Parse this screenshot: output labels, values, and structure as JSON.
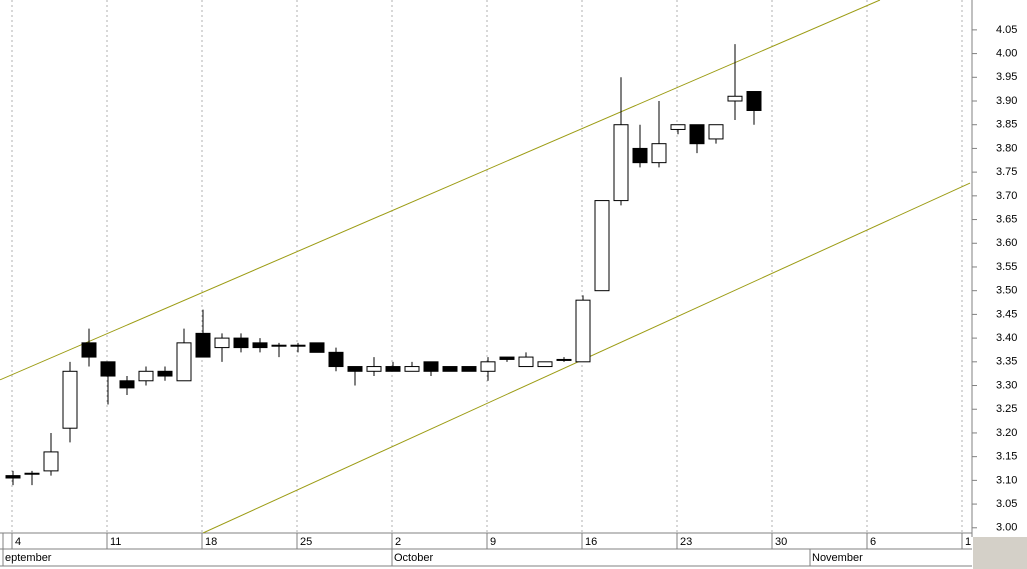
{
  "chart_data": {
    "type": "candlestick",
    "categories": [
      "4",
      null,
      null,
      null,
      null,
      "11",
      null,
      null,
      null,
      null,
      "18",
      null,
      null,
      null,
      null,
      "25",
      null,
      null,
      null,
      null,
      "2",
      null,
      null,
      null,
      null,
      "9",
      null,
      null,
      null,
      null,
      "16",
      null,
      null,
      null,
      null,
      "23",
      null,
      null,
      null,
      null,
      "30",
      null,
      null,
      null,
      null,
      "6",
      null,
      null,
      null,
      null,
      "1"
    ],
    "month_categories": [
      "eptember",
      null,
      null,
      null,
      null,
      null,
      null,
      null,
      null,
      null,
      null,
      null,
      null,
      null,
      null,
      null,
      null,
      null,
      null,
      null,
      "October",
      null,
      null,
      null,
      null,
      null,
      null,
      null,
      null,
      null,
      null,
      null,
      null,
      null,
      null,
      null,
      null,
      null,
      null,
      null,
      null,
      null,
      "November",
      null,
      null,
      null,
      null,
      null,
      null,
      null,
      null
    ],
    "open": [
      3.11,
      3.115,
      3.12,
      3.21,
      3.39,
      3.35,
      3.31,
      3.31,
      3.33,
      3.31,
      3.41,
      3.38,
      3.4,
      3.39,
      3.385,
      3.385,
      3.39,
      3.37,
      3.34,
      3.33,
      3.34,
      3.33,
      3.35,
      3.34,
      3.34,
      3.33,
      3.36,
      3.34,
      3.34,
      3.355,
      3.35,
      3.5,
      3.69,
      3.8,
      3.77,
      3.84,
      3.85,
      3.82,
      3.9,
      3.92,
      null,
      null,
      null,
      null,
      null,
      null,
      null,
      null,
      null,
      null,
      null
    ],
    "high": [
      3.12,
      3.12,
      3.2,
      3.35,
      3.42,
      3.35,
      3.32,
      3.34,
      3.34,
      3.42,
      3.46,
      3.41,
      3.41,
      3.4,
      3.39,
      3.39,
      3.39,
      3.38,
      3.34,
      3.36,
      3.35,
      3.35,
      3.35,
      3.34,
      3.34,
      3.36,
      3.36,
      3.37,
      3.35,
      3.36,
      3.49,
      3.69,
      3.95,
      3.85,
      3.9,
      3.85,
      3.85,
      3.85,
      4.02,
      3.92,
      null,
      null,
      null,
      null,
      null,
      null,
      null,
      null,
      null,
      null,
      null
    ],
    "low": [
      3.09,
      3.09,
      3.11,
      3.18,
      3.34,
      3.26,
      3.28,
      3.3,
      3.31,
      3.31,
      3.36,
      3.35,
      3.37,
      3.37,
      3.36,
      3.37,
      3.37,
      3.33,
      3.3,
      3.32,
      3.33,
      3.33,
      3.32,
      3.33,
      3.33,
      3.31,
      3.35,
      3.34,
      3.34,
      3.35,
      3.35,
      3.5,
      3.68,
      3.76,
      3.76,
      3.83,
      3.79,
      3.81,
      3.86,
      3.85,
      null,
      null,
      null,
      null,
      null,
      null,
      null,
      null,
      null,
      null,
      null
    ],
    "close": [
      3.105,
      3.115,
      3.16,
      3.33,
      3.36,
      3.32,
      3.295,
      3.33,
      3.32,
      3.39,
      3.36,
      3.4,
      3.38,
      3.38,
      3.385,
      3.385,
      3.37,
      3.34,
      3.33,
      3.34,
      3.33,
      3.34,
      3.33,
      3.33,
      3.33,
      3.35,
      3.355,
      3.36,
      3.35,
      3.355,
      3.48,
      3.69,
      3.85,
      3.77,
      3.81,
      3.85,
      3.81,
      3.85,
      3.91,
      3.88,
      null,
      null,
      null,
      null,
      null,
      null,
      null,
      null,
      null,
      null,
      null
    ],
    "up_color": "#ffffff",
    "down_color": "#000000",
    "trendlines": [
      {
        "color": "#9c9c14",
        "x": [
          -0.68,
          45.63
        ],
        "values": [
          3.312,
          4.113
        ]
      },
      {
        "color": "#9c9c14",
        "x": [
          10.0,
          50.37
        ],
        "values": [
          2.989,
          3.727
        ]
      }
    ],
    "ylim": [
      2.989,
      4.113
    ],
    "yticks": [
      {
        "value": 3.0,
        "label": "3.00"
      },
      {
        "value": 3.05,
        "label": "3.05"
      },
      {
        "value": 3.1,
        "label": "3.10"
      },
      {
        "value": 3.15,
        "label": "3.15"
      },
      {
        "value": 3.2,
        "label": "3.20"
      },
      {
        "value": 3.25,
        "label": "3.25"
      },
      {
        "value": 3.3,
        "label": "3.30"
      },
      {
        "value": 3.35,
        "label": "3.35"
      },
      {
        "value": 3.4,
        "label": "3.40"
      },
      {
        "value": 3.45,
        "label": "3.45"
      },
      {
        "value": 3.5,
        "label": "3.50"
      },
      {
        "value": 3.55,
        "label": "3.55"
      },
      {
        "value": 3.6,
        "label": "3.60"
      },
      {
        "value": 3.65,
        "label": "3.65"
      },
      {
        "value": 3.7,
        "label": "3.70"
      },
      {
        "value": 3.75,
        "label": "3.75"
      },
      {
        "value": 3.8,
        "label": "3.80"
      },
      {
        "value": 3.85,
        "label": "3.85"
      },
      {
        "value": 3.9,
        "label": "3.90"
      },
      {
        "value": 3.95,
        "label": "3.95"
      },
      {
        "value": 4.0,
        "label": "4.00"
      },
      {
        "value": 4.05,
        "label": "4.05"
      }
    ],
    "grid": true
  }
}
